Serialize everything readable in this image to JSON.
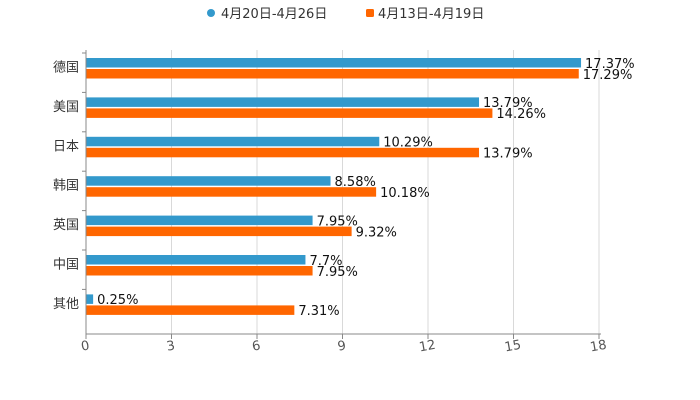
{
  "chart_data": {
    "type": "bar",
    "orientation": "horizontal",
    "categories": [
      "德国",
      "美国",
      "日本",
      "韩国",
      "英国",
      "中国",
      "其他"
    ],
    "series": [
      {
        "name": "4月20日-4月26日",
        "color": "#3399cc",
        "values": [
          17.37,
          13.79,
          10.29,
          8.58,
          7.95,
          7.7,
          0.25
        ],
        "labels": [
          "17.37%",
          "13.79%",
          "10.29%",
          "8.58%",
          "7.95%",
          "7.7%",
          "0.25%"
        ]
      },
      {
        "name": "4月13日-4月19日",
        "color": "#ff6600",
        "values": [
          17.29,
          14.26,
          13.79,
          10.18,
          9.32,
          7.95,
          7.31
        ],
        "labels": [
          "17.29%",
          "14.26%",
          "13.79%",
          "10.18%",
          "9.32%",
          "7.95%",
          "7.31%"
        ]
      }
    ],
    "xlim": [
      0,
      18
    ],
    "ticks": [
      "0",
      "3",
      "6",
      "9",
      "12",
      "15",
      "18"
    ],
    "tick_values": [
      0,
      3,
      6,
      9,
      12,
      15,
      18
    ],
    "grid": true,
    "legend": "top"
  }
}
